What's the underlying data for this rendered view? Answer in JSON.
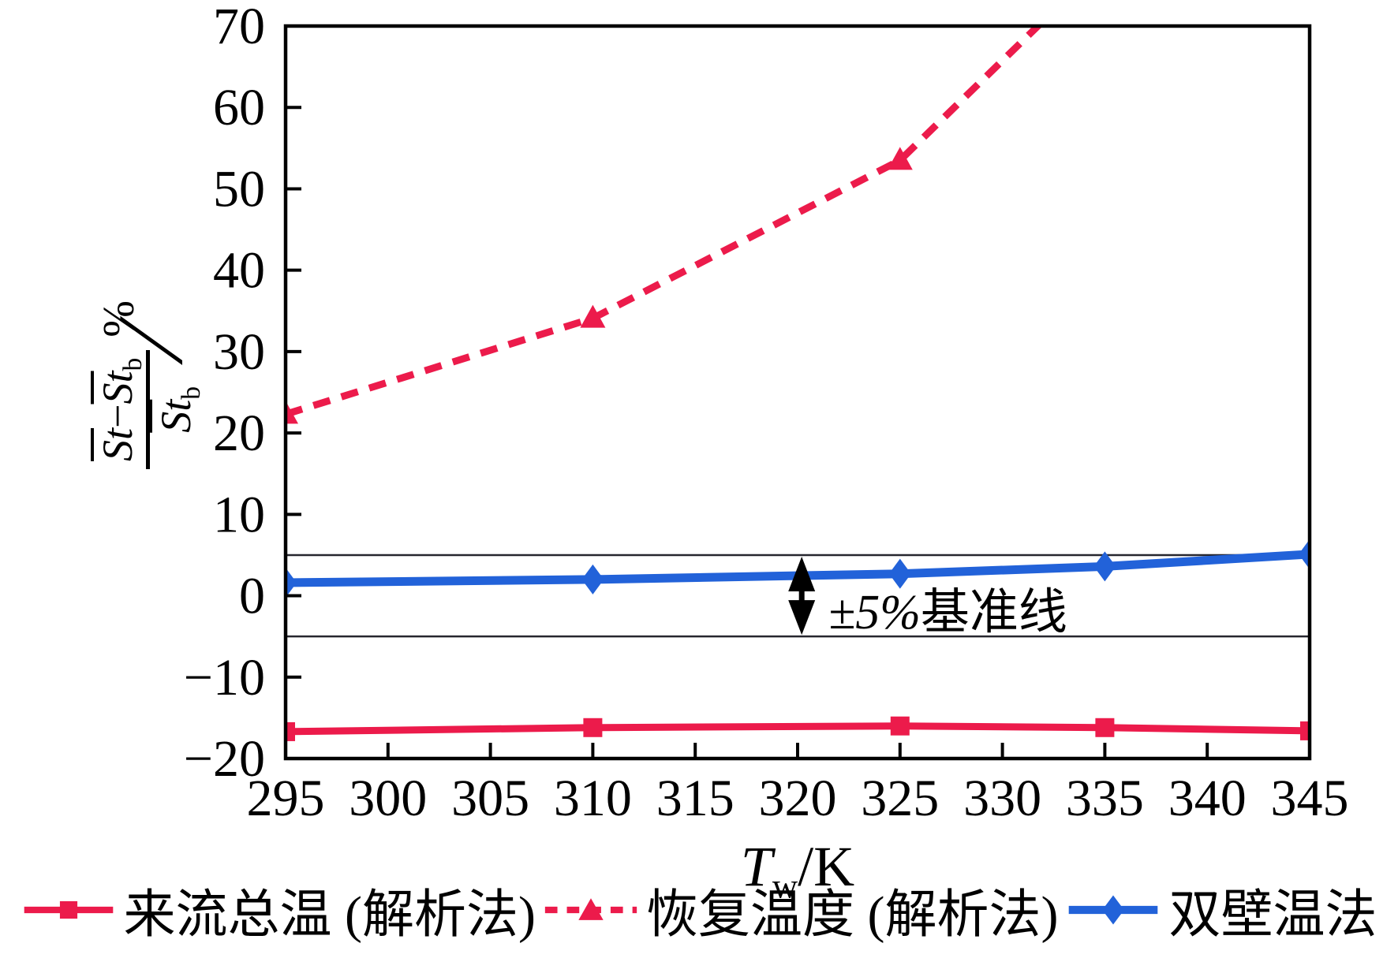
{
  "figure": {
    "background": "#ffffff"
  },
  "chart_data": {
    "type": "line",
    "title": "",
    "xlabel_parts": {
      "symbol": "T",
      "subscript": "w",
      "unit": "/K"
    },
    "ylabel_parts": {
      "st": "St",
      "minus": "−",
      "sub_b": "b",
      "slash": "∕",
      "percent": "%"
    },
    "xlim": [
      295,
      345
    ],
    "ylim": [
      -20,
      70
    ],
    "xticks": [
      295,
      300,
      305,
      310,
      315,
      320,
      325,
      330,
      335,
      340,
      345
    ],
    "yticks": [
      -20,
      -10,
      0,
      10,
      20,
      30,
      40,
      50,
      60,
      70
    ],
    "grid": false,
    "legend_position": "bottom",
    "axis_color": "#000000",
    "reference_lines": {
      "values": [
        5,
        -5
      ],
      "color": "#26262e"
    },
    "annotation": {
      "label": "±5%基准线",
      "arrow_x": 320.2,
      "arrow_between": [
        5,
        -5
      ]
    },
    "series": [
      {
        "name": "来流总温 (解析法)",
        "color": "#ec1b4b",
        "line": "solid",
        "marker": "square",
        "x": [
          295,
          310,
          325,
          335,
          345
        ],
        "y": [
          -16.7,
          -16.2,
          -16.0,
          -16.2,
          -16.6
        ]
      },
      {
        "name": "恢复温度 (解析法)",
        "color": "#ec1b4b",
        "line": "dashed",
        "marker": "triangle",
        "x": [
          295,
          310,
          325,
          335
        ],
        "y": [
          22.3,
          34.1,
          53.5,
          78.0
        ],
        "note": "last point clipped above ylim (curve exits top near x=331.7)"
      },
      {
        "name": "双壁温法",
        "color": "#2262d9",
        "line": "solid",
        "marker": "diamond",
        "x": [
          295,
          310,
          325,
          335,
          345
        ],
        "y": [
          1.6,
          2.0,
          2.7,
          3.6,
          5.1
        ]
      }
    ]
  }
}
